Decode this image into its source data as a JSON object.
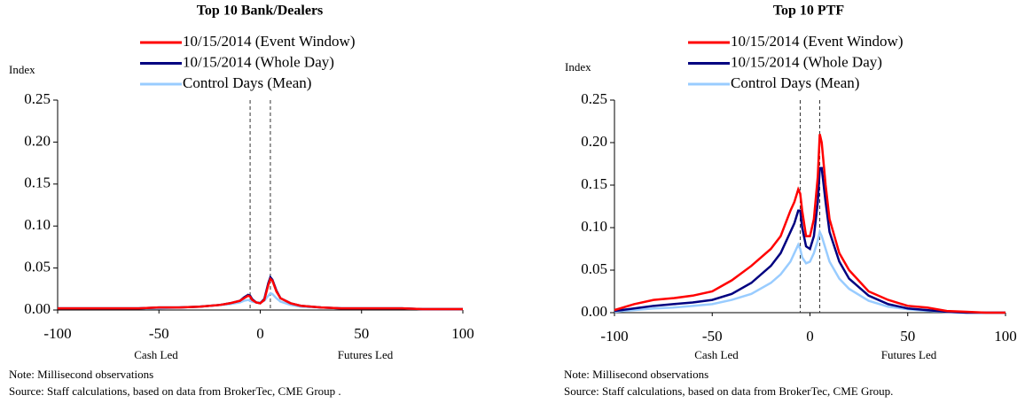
{
  "chart_data": [
    {
      "type": "line",
      "title": "Top 10 Bank/Dealers",
      "y_label": "Index",
      "annotations": [
        "Cash Led",
        "Futures Led"
      ],
      "note": "Note: Millisecond observations",
      "source": "Source: Staff calculations, based on data from BrokerTec, CME Group .",
      "x": [
        -100,
        -90,
        -80,
        -70,
        -60,
        -50,
        -40,
        -30,
        -20,
        -15,
        -10,
        -8,
        -6,
        -5,
        -4,
        -2,
        0,
        2,
        4,
        5,
        6,
        8,
        10,
        15,
        20,
        30,
        40,
        50,
        60,
        70,
        80,
        90,
        100
      ],
      "series": [
        {
          "name": "10/15/2014 (Event Window)",
          "color": "#ff0000",
          "values": [
            0.002,
            0.002,
            0.002,
            0.002,
            0.002,
            0.003,
            0.003,
            0.004,
            0.006,
            0.008,
            0.011,
            0.014,
            0.017,
            0.016,
            0.012,
            0.009,
            0.008,
            0.012,
            0.03,
            0.037,
            0.035,
            0.022,
            0.014,
            0.008,
            0.005,
            0.003,
            0.002,
            0.002,
            0.002,
            0.002,
            0.001,
            0.001,
            0.001
          ]
        },
        {
          "name": "10/15/2014 (Whole Day)",
          "color": "#000080",
          "values": [
            0.002,
            0.002,
            0.002,
            0.002,
            0.002,
            0.003,
            0.003,
            0.004,
            0.006,
            0.008,
            0.011,
            0.015,
            0.018,
            0.017,
            0.013,
            0.009,
            0.008,
            0.013,
            0.032,
            0.039,
            0.036,
            0.023,
            0.014,
            0.008,
            0.005,
            0.003,
            0.002,
            0.002,
            0.002,
            0.002,
            0.001,
            0.001,
            0.001
          ]
        },
        {
          "name": "Control Days (Mean)",
          "color": "#99ccff",
          "values": [
            0.002,
            0.002,
            0.002,
            0.002,
            0.002,
            0.002,
            0.003,
            0.004,
            0.006,
            0.007,
            0.009,
            0.011,
            0.012,
            0.011,
            0.01,
            0.009,
            0.009,
            0.011,
            0.017,
            0.02,
            0.019,
            0.014,
            0.01,
            0.006,
            0.004,
            0.003,
            0.002,
            0.002,
            0.002,
            0.002,
            0.001,
            0.001,
            0.001
          ]
        }
      ],
      "xlim": [
        -100,
        100
      ],
      "ylim": [
        0,
        0.25
      ],
      "xticks": [
        -100,
        -50,
        0,
        50,
        100
      ],
      "yticks": [
        {
          "value": 0,
          "label": "0.00"
        },
        {
          "value": 0.05,
          "label": "0.05"
        },
        {
          "value": 0.1,
          "label": "0.10"
        },
        {
          "value": 0.15,
          "label": "0.15"
        },
        {
          "value": 0.2,
          "label": "0.20"
        },
        {
          "value": 0.25,
          "label": "0.25"
        }
      ],
      "vlines": [
        -5,
        5
      ]
    },
    {
      "type": "line",
      "title": "Top 10 PTF",
      "y_label": "Index",
      "annotations": [
        "Cash Led",
        "Futures Led"
      ],
      "note": "Note: Millisecond observations",
      "source": "Source: Staff calculations, based on data from BrokerTec, CME Group.",
      "x": [
        -100,
        -90,
        -80,
        -70,
        -60,
        -50,
        -40,
        -30,
        -20,
        -15,
        -10,
        -8,
        -6,
        -5,
        -4,
        -2,
        0,
        2,
        4,
        5,
        6,
        8,
        10,
        15,
        20,
        30,
        40,
        50,
        60,
        70,
        80,
        90,
        100
      ],
      "series": [
        {
          "name": "10/15/2014 (Event Window)",
          "color": "#ff0000",
          "values": [
            0.003,
            0.01,
            0.015,
            0.017,
            0.02,
            0.025,
            0.038,
            0.055,
            0.075,
            0.09,
            0.12,
            0.13,
            0.145,
            0.14,
            0.12,
            0.09,
            0.09,
            0.11,
            0.16,
            0.21,
            0.2,
            0.15,
            0.11,
            0.07,
            0.05,
            0.025,
            0.015,
            0.008,
            0.006,
            0.002,
            0.001,
            0,
            0
          ]
        },
        {
          "name": "10/15/2014 (Whole Day)",
          "color": "#000080",
          "values": [
            0.002,
            0.005,
            0.008,
            0.01,
            0.012,
            0.015,
            0.022,
            0.035,
            0.055,
            0.07,
            0.095,
            0.105,
            0.12,
            0.12,
            0.1,
            0.078,
            0.075,
            0.09,
            0.13,
            0.17,
            0.17,
            0.13,
            0.095,
            0.06,
            0.04,
            0.02,
            0.01,
            0.005,
            0.003,
            0.001,
            0,
            0,
            0
          ]
        },
        {
          "name": "Control Days (Mean)",
          "color": "#99ccff",
          "values": [
            0.001,
            0.003,
            0.005,
            0.006,
            0.008,
            0.01,
            0.015,
            0.022,
            0.035,
            0.045,
            0.06,
            0.07,
            0.08,
            0.075,
            0.065,
            0.058,
            0.06,
            0.07,
            0.085,
            0.095,
            0.09,
            0.075,
            0.06,
            0.04,
            0.028,
            0.014,
            0.007,
            0.004,
            0.002,
            0.001,
            0,
            0,
            0
          ]
        }
      ],
      "xlim": [
        -100,
        100
      ],
      "ylim": [
        0,
        0.25
      ],
      "xticks": [
        -100,
        -50,
        0,
        50,
        100
      ],
      "yticks": [
        {
          "value": 0,
          "label": "0.00"
        },
        {
          "value": 0.05,
          "label": "0.05"
        },
        {
          "value": 0.1,
          "label": "0.10"
        },
        {
          "value": 0.15,
          "label": "0.15"
        },
        {
          "value": 0.2,
          "label": "0.20"
        },
        {
          "value": 0.25,
          "label": "0.25"
        }
      ],
      "vlines": [
        -5,
        5
      ]
    }
  ]
}
